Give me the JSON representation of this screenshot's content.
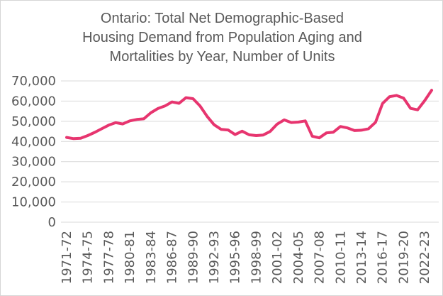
{
  "title": {
    "line1": "Ontario: Total Net Demographic-Based",
    "line2": "Housing Demand from Population Aging and",
    "line3": "Mortalities by Year, Number of Units"
  },
  "colors": {
    "line": "#e7356f",
    "grid": "#d9d9d9",
    "text": "#595959",
    "border": "#d6d6d6",
    "background": "#ffffff"
  },
  "chart_data": {
    "type": "line",
    "title": "Ontario: Total Net Demographic-Based Housing Demand from Population Aging and Mortalities by Year, Number of Units",
    "series_name": "Total net demographic-based housing demand (number of units)",
    "x": [
      "1971-72",
      "1972-73",
      "1973-74",
      "1974-75",
      "1975-76",
      "1976-77",
      "1977-78",
      "1978-79",
      "1979-80",
      "1980-81",
      "1981-82",
      "1982-83",
      "1983-84",
      "1984-85",
      "1985-86",
      "1986-87",
      "1987-88",
      "1988-89",
      "1989-90",
      "1990-91",
      "1991-92",
      "1992-93",
      "1993-94",
      "1994-95",
      "1995-96",
      "1996-97",
      "1997-98",
      "1998-99",
      "1999-00",
      "2000-01",
      "2001-02",
      "2002-03",
      "2003-04",
      "2004-05",
      "2005-06",
      "2006-07",
      "2007-08",
      "2008-09",
      "2009-10",
      "2010-11",
      "2011-12",
      "2012-13",
      "2013-14",
      "2014-15",
      "2015-16",
      "2016-17",
      "2017-18",
      "2018-19",
      "2019-20",
      "2020-21",
      "2021-22",
      "2022-23",
      "2023-24"
    ],
    "values": [
      42000,
      41400,
      41600,
      42900,
      44500,
      46300,
      48100,
      49300,
      48700,
      50200,
      50900,
      51200,
      54200,
      56300,
      57600,
      59600,
      58900,
      61700,
      61200,
      57600,
      52500,
      48300,
      46000,
      45700,
      43400,
      45100,
      43300,
      42900,
      43200,
      45000,
      48600,
      50700,
      49400,
      49600,
      50200,
      42600,
      41800,
      44200,
      44600,
      47400,
      46700,
      45400,
      45600,
      46300,
      49500,
      58800,
      62200,
      62800,
      61500,
      56400,
      55700,
      60200,
      65400
    ],
    "x_tick_labels": [
      "1971-72",
      "1974-75",
      "1977-78",
      "1980-81",
      "1983-84",
      "1986-87",
      "1989-90",
      "1992-93",
      "1995-96",
      "1998-99",
      "2001-02",
      "2004-05",
      "2007-08",
      "2010-11",
      "2013-14",
      "2016-17",
      "2019-20",
      "2022-23"
    ],
    "x_tick_step": 3,
    "y_tick_labels": [
      "70,000",
      "60,000",
      "50,000",
      "40,000",
      "30,000",
      "20,000",
      "10,000",
      "0"
    ],
    "ylim": [
      0,
      70000
    ],
    "y_tick_interval": 10000,
    "grid": "horizontal",
    "legend": "none"
  }
}
